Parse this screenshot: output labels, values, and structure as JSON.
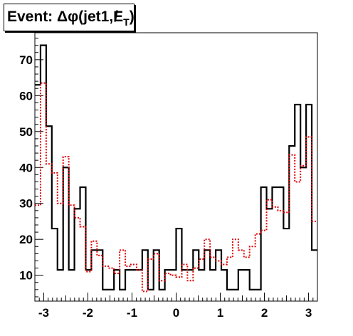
{
  "chart_data": {
    "type": "histogram",
    "title_prefix": "Event: Δφ(jet1,",
    "title_symbol": "E",
    "title_sub": "T",
    "title_suffix": ")",
    "xlim": [
      -3.2,
      3.2
    ],
    "ylim": [
      2.8,
      77.5
    ],
    "xticks": [
      "-3",
      "-2",
      "-1",
      "0",
      "1",
      "2",
      "3"
    ],
    "yticks": [
      "10",
      "20",
      "30",
      "40",
      "50",
      "60",
      "70"
    ],
    "bins": 50,
    "series": [
      {
        "color": "#000000",
        "style": "solid",
        "values": [
          63,
          74,
          51.5,
          23,
          11.5,
          40,
          11.5,
          28.5,
          34.5,
          11.5,
          17,
          17,
          6,
          6,
          11.5,
          6,
          11.5,
          11.5,
          11.5,
          17,
          6,
          17,
          6,
          11.5,
          11.5,
          23,
          11.5,
          11.5,
          17,
          11.5,
          17,
          11.5,
          17,
          11.5,
          6,
          6,
          11.5,
          11.5,
          6,
          6,
          34.5,
          28.5,
          34.5,
          34.5,
          23,
          46,
          57.5,
          40,
          57.5,
          17
        ]
      },
      {
        "color": "#e00000",
        "style": "dotted",
        "values": [
          29.5,
          63.5,
          41,
          38.5,
          30,
          43,
          29.5,
          26,
          23.5,
          11,
          19.5,
          15.5,
          12.5,
          12,
          10.5,
          17,
          12.5,
          13,
          11.5,
          5.5,
          14.5,
          16,
          8.5,
          10.5,
          10,
          9.5,
          13,
          8.5,
          12,
          14.5,
          20,
          15,
          14,
          13,
          15,
          20,
          17,
          15,
          18,
          21.5,
          22.5,
          31,
          29,
          28,
          27.5,
          43.5,
          36,
          40.5,
          48.5,
          25
        ]
      }
    ]
  }
}
